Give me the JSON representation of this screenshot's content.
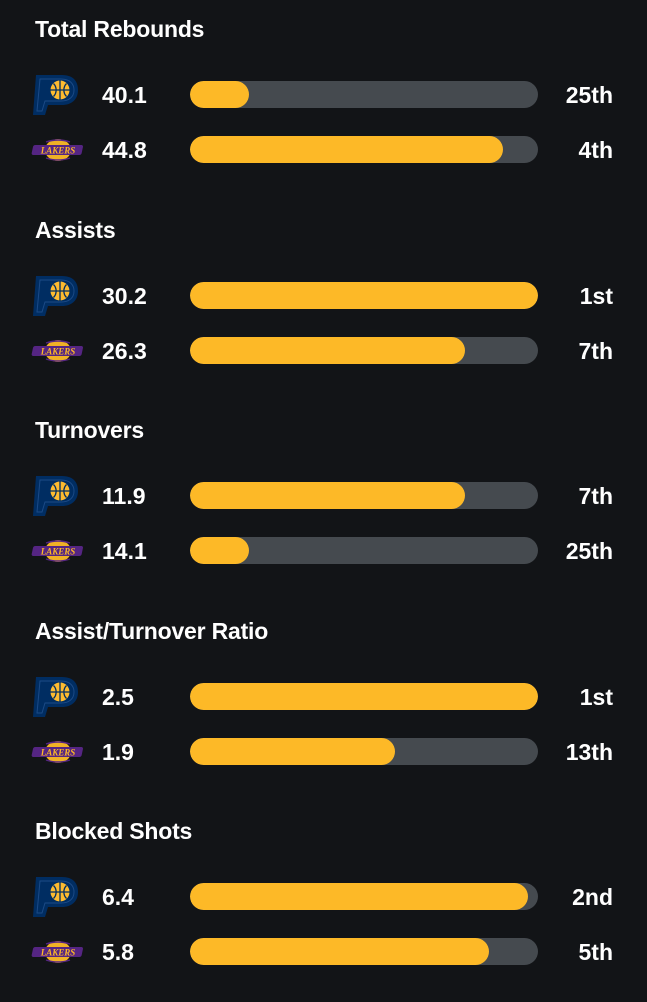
{
  "colors": {
    "background": "#121417",
    "bar_fill": "#fdb927",
    "bar_track": "#454a4f",
    "pacers_navy": "#002d62",
    "pacers_gold": "#fdbb30",
    "lakers_purple": "#552583",
    "lakers_gold": "#fdb927"
  },
  "teams": {
    "home": {
      "logo_icon": "pacers-logo-icon"
    },
    "away": {
      "logo_icon": "lakers-logo-icon",
      "logo_text": "LAKERS"
    }
  },
  "stats": [
    {
      "title": "Total Rebounds",
      "rows": [
        {
          "team": "home",
          "value": "40.1",
          "rank": "25th",
          "fill_fraction": 0.17
        },
        {
          "team": "away",
          "value": "44.8",
          "rank": "4th",
          "fill_fraction": 0.9
        }
      ]
    },
    {
      "title": "Assists",
      "rows": [
        {
          "team": "home",
          "value": "30.2",
          "rank": "1st",
          "fill_fraction": 1.0
        },
        {
          "team": "away",
          "value": "26.3",
          "rank": "7th",
          "fill_fraction": 0.79
        }
      ]
    },
    {
      "title": "Turnovers",
      "rows": [
        {
          "team": "home",
          "value": "11.9",
          "rank": "7th",
          "fill_fraction": 0.79
        },
        {
          "team": "away",
          "value": "14.1",
          "rank": "25th",
          "fill_fraction": 0.17
        }
      ]
    },
    {
      "title": "Assist/Turnover Ratio",
      "rows": [
        {
          "team": "home",
          "value": "2.5",
          "rank": "1st",
          "fill_fraction": 1.0
        },
        {
          "team": "away",
          "value": "1.9",
          "rank": "13th",
          "fill_fraction": 0.59
        }
      ]
    },
    {
      "title": "Blocked Shots",
      "rows": [
        {
          "team": "home",
          "value": "6.4",
          "rank": "2nd",
          "fill_fraction": 0.97
        },
        {
          "team": "away",
          "value": "5.8",
          "rank": "5th",
          "fill_fraction": 0.86
        }
      ]
    }
  ]
}
